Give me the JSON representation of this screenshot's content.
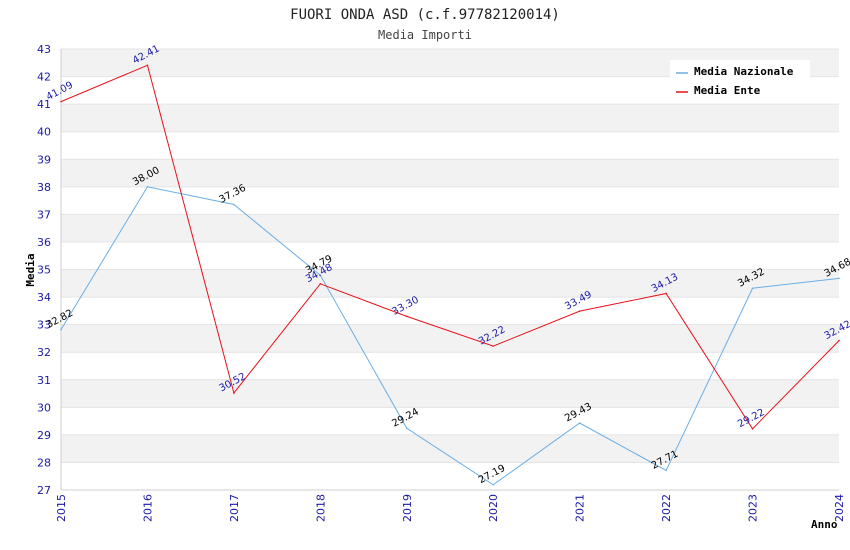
{
  "chart_data": {
    "type": "line",
    "title": "FUORI ONDA ASD (c.f.97782120014)",
    "subtitle": "Media Importi",
    "xlabel": "Anno",
    "ylabel": "Media",
    "ylim": [
      27,
      43
    ],
    "yticks": [
      27,
      28,
      29,
      30,
      31,
      32,
      33,
      34,
      35,
      36,
      37,
      38,
      39,
      40,
      41,
      42,
      43
    ],
    "categories": [
      "2015",
      "2016",
      "2017",
      "2018",
      "2019",
      "2020",
      "2021",
      "2022",
      "2023",
      "2024"
    ],
    "grid": true,
    "legend_position": "top-right",
    "series": [
      {
        "name": "Media Nazionale",
        "color": "#6aaee6",
        "label_color": "#000000",
        "values": [
          32.82,
          38.0,
          37.36,
          34.79,
          29.24,
          27.19,
          29.43,
          27.71,
          34.32,
          34.68
        ],
        "labels": [
          "32.82",
          "38.00",
          "37.36",
          "34.79",
          "29.24",
          "27.19",
          "29.43",
          "27.71",
          "34.32",
          "34.68"
        ]
      },
      {
        "name": "Media Ente",
        "color": "#e8111b",
        "label_color": "#1a1aa6",
        "values": [
          41.09,
          42.41,
          30.52,
          34.48,
          33.3,
          32.22,
          33.49,
          34.13,
          29.22,
          32.42
        ],
        "labels": [
          "41.09",
          "42.41",
          "30.52",
          "34.48",
          "33.30",
          "32.22",
          "33.49",
          "34.13",
          "29.22",
          "32.42"
        ]
      }
    ]
  }
}
